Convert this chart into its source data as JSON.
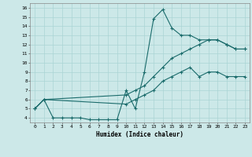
{
  "xlabel": "Humidex (Indice chaleur)",
  "xlim": [
    -0.5,
    23.5
  ],
  "ylim": [
    3.5,
    16.5
  ],
  "xticks": [
    0,
    1,
    2,
    3,
    4,
    5,
    6,
    7,
    8,
    9,
    10,
    11,
    12,
    13,
    14,
    15,
    16,
    17,
    18,
    19,
    20,
    21,
    22,
    23
  ],
  "yticks": [
    4,
    5,
    6,
    7,
    8,
    9,
    10,
    11,
    12,
    13,
    14,
    15,
    16
  ],
  "bg_color": "#cce8e8",
  "grid_color": "#aad4d4",
  "line_color": "#1a6b6b",
  "line1_x": [
    0,
    1,
    2,
    3,
    4,
    5,
    6,
    7,
    8,
    9,
    10,
    11,
    12,
    13,
    14,
    15,
    16,
    17,
    18,
    19,
    20,
    21,
    22,
    23
  ],
  "line1_y": [
    5,
    6,
    4,
    4,
    4,
    4,
    3.8,
    3.8,
    3.8,
    3.8,
    7,
    5,
    9,
    14.8,
    15.8,
    13.8,
    13,
    13,
    12.5,
    12.5,
    12.5,
    12,
    11.5,
    11.5
  ],
  "line2_x": [
    0,
    1,
    10,
    11,
    12,
    13,
    14,
    15,
    16,
    17,
    18,
    19,
    20,
    21,
    22,
    23
  ],
  "line2_y": [
    5,
    6,
    6.5,
    7,
    7.5,
    8.5,
    9.5,
    10.5,
    11,
    11.5,
    12,
    12.5,
    12.5,
    12,
    11.5,
    11.5
  ],
  "line3_x": [
    0,
    1,
    10,
    11,
    12,
    13,
    14,
    15,
    16,
    17,
    18,
    19,
    20,
    21,
    22,
    23
  ],
  "line3_y": [
    5,
    6,
    5.5,
    6,
    6.5,
    7,
    8,
    8.5,
    9,
    9.5,
    8.5,
    9,
    9,
    8.5,
    8.5,
    8.5
  ]
}
